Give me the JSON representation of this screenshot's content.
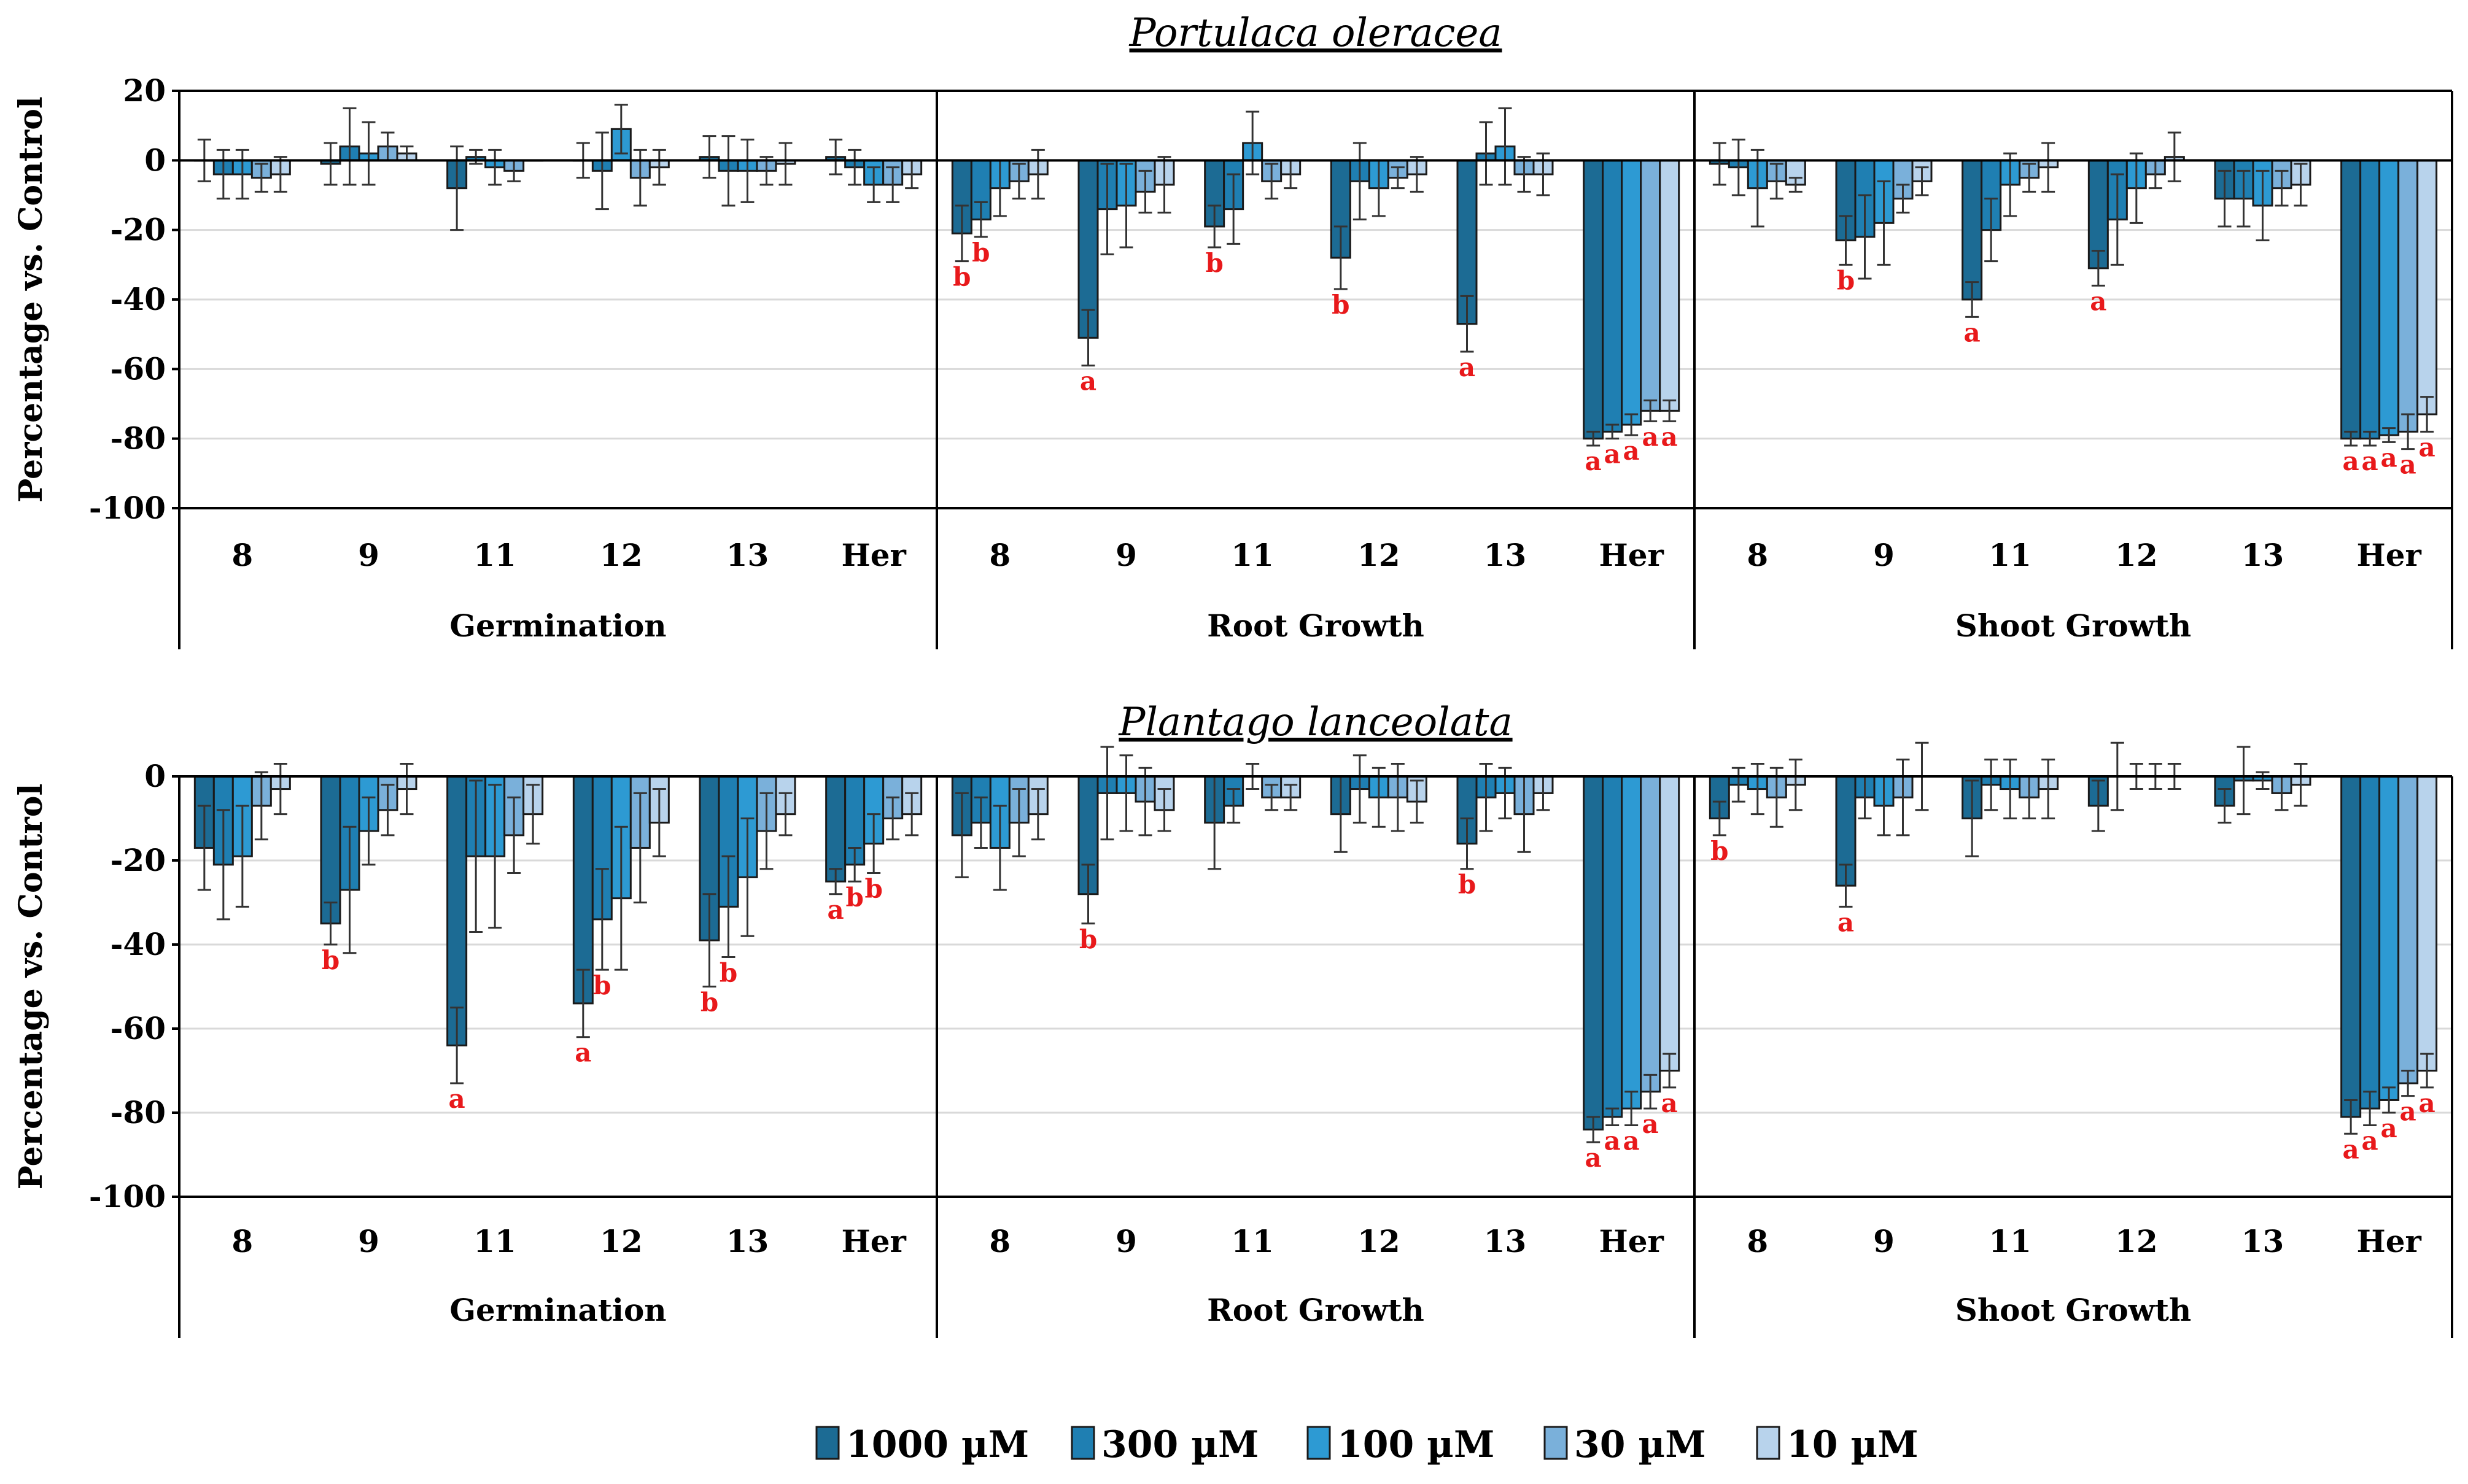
{
  "figure": {
    "legend_title": "",
    "concentrations": [
      "1000 µM",
      "300 µM",
      "100 µM",
      "30 µM",
      "10 µM"
    ]
  },
  "colors": {
    "series": [
      "#1c6b94",
      "#1f7fb2",
      "#2d9ad3",
      "#7ab0da",
      "#b8d3ec"
    ],
    "sig_letter": "#e8191b",
    "gridline": "#d9d9d9"
  },
  "chart_data": [
    {
      "type": "bar",
      "title": "Portulaca oleracea",
      "ylabel": "Percentage vs. Control",
      "ylim": [
        -100,
        20
      ],
      "yticks": [
        20,
        0,
        -20,
        -40,
        -60,
        -80,
        -100
      ],
      "categories": [
        "8",
        "9",
        "11",
        "12",
        "13",
        "Her"
      ],
      "groups": [
        "Germination",
        "Root Growth",
        "Shoot Growth"
      ],
      "series_names": [
        "1000 µM",
        "300 µM",
        "100 µM",
        "30 µM",
        "10 µM"
      ],
      "data": {
        "Germination": {
          "8": {
            "v": [
              0,
              -4,
              -4,
              -5,
              -4
            ],
            "e": [
              6,
              7,
              7,
              4,
              5
            ],
            "sig": [
              "",
              "",
              "",
              "",
              ""
            ]
          },
          "9": {
            "v": [
              -1,
              4,
              2,
              4,
              2
            ],
            "e": [
              6,
              11,
              9,
              4,
              2
            ],
            "sig": [
              "",
              "",
              "",
              "",
              ""
            ]
          },
          "11": {
            "v": [
              -8,
              1,
              -2,
              -3,
              0
            ],
            "e": [
              12,
              2,
              5,
              3,
              0
            ],
            "sig": [
              "",
              "",
              "",
              "",
              ""
            ]
          },
          "12": {
            "v": [
              0,
              -3,
              9,
              -5,
              -2
            ],
            "e": [
              5,
              11,
              7,
              8,
              5
            ],
            "sig": [
              "",
              "",
              "",
              "",
              ""
            ]
          },
          "13": {
            "v": [
              1,
              -3,
              -3,
              -3,
              -1
            ],
            "e": [
              6,
              10,
              9,
              4,
              6
            ],
            "sig": [
              "",
              "",
              "",
              "",
              ""
            ]
          },
          "Her": {
            "v": [
              1,
              -2,
              -7,
              -7,
              -4
            ],
            "e": [
              5,
              5,
              5,
              5,
              4
            ],
            "sig": [
              "",
              "",
              "",
              "",
              ""
            ]
          }
        },
        "Root Growth": {
          "8": {
            "v": [
              -21,
              -17,
              -8,
              -6,
              -4
            ],
            "e": [
              8,
              5,
              8,
              5,
              7
            ],
            "sig": [
              "b",
              "b",
              "",
              "",
              ""
            ]
          },
          "9": {
            "v": [
              -51,
              -14,
              -13,
              -9,
              -7
            ],
            "e": [
              8,
              13,
              12,
              6,
              8
            ],
            "sig": [
              "a",
              "",
              "",
              "",
              ""
            ]
          },
          "11": {
            "v": [
              -19,
              -14,
              5,
              -6,
              -4
            ],
            "e": [
              6,
              10,
              9,
              5,
              4
            ],
            "sig": [
              "b",
              "",
              "",
              "",
              ""
            ]
          },
          "12": {
            "v": [
              -28,
              -6,
              -8,
              -5,
              -4
            ],
            "e": [
              9,
              11,
              8,
              3,
              5
            ],
            "sig": [
              "b",
              "",
              "",
              "",
              ""
            ]
          },
          "13": {
            "v": [
              -47,
              2,
              4,
              -4,
              -4
            ],
            "e": [
              8,
              9,
              11,
              5,
              6
            ],
            "sig": [
              "a",
              "",
              "",
              "",
              ""
            ]
          },
          "Her": {
            "v": [
              -80,
              -78,
              -76,
              -72,
              -72
            ],
            "e": [
              2,
              2,
              3,
              3,
              3
            ],
            "sig": [
              "a",
              "a",
              "a",
              "a",
              "a"
            ]
          }
        },
        "Shoot Growth": {
          "8": {
            "v": [
              -1,
              -2,
              -8,
              -6,
              -7
            ],
            "e": [
              6,
              8,
              11,
              5,
              2
            ],
            "sig": [
              "",
              "",
              "",
              "",
              ""
            ]
          },
          "9": {
            "v": [
              -23,
              -22,
              -18,
              -11,
              -6
            ],
            "e": [
              7,
              12,
              12,
              4,
              4
            ],
            "sig": [
              "b",
              "",
              "",
              "",
              ""
            ]
          },
          "11": {
            "v": [
              -40,
              -20,
              -7,
              -5,
              -2
            ],
            "e": [
              5,
              9,
              9,
              4,
              7
            ],
            "sig": [
              "a",
              "",
              "",
              "",
              ""
            ]
          },
          "12": {
            "v": [
              -31,
              -17,
              -8,
              -4,
              1
            ],
            "e": [
              5,
              13,
              10,
              4,
              7
            ],
            "sig": [
              "a",
              "",
              "",
              "",
              ""
            ]
          },
          "13": {
            "v": [
              -11,
              -11,
              -13,
              -8,
              -7
            ],
            "e": [
              8,
              8,
              10,
              5,
              6
            ],
            "sig": [
              "",
              "",
              "",
              "",
              ""
            ]
          },
          "Her": {
            "v": [
              -80,
              -80,
              -79,
              -78,
              -73
            ],
            "e": [
              2,
              2,
              2,
              5,
              5
            ],
            "sig": [
              "a",
              "a",
              "a",
              "a",
              "a"
            ]
          }
        }
      }
    },
    {
      "type": "bar",
      "title": "Plantago lanceolata",
      "ylabel": "Percentage vs. Control",
      "ylim": [
        -100,
        0
      ],
      "yticks": [
        0,
        -20,
        -40,
        -60,
        -80,
        -100
      ],
      "categories": [
        "8",
        "9",
        "11",
        "12",
        "13",
        "Her"
      ],
      "groups": [
        "Germination",
        "Root Growth",
        "Shoot Growth"
      ],
      "series_names": [
        "1000 µM",
        "300 µM",
        "100 µM",
        "30 µM",
        "10 µM"
      ],
      "data": {
        "Germination": {
          "8": {
            "v": [
              -17,
              -21,
              -19,
              -7,
              -3
            ],
            "e": [
              10,
              13,
              12,
              8,
              6
            ],
            "sig": [
              "",
              "",
              "",
              "",
              ""
            ]
          },
          "9": {
            "v": [
              -35,
              -27,
              -13,
              -8,
              -3
            ],
            "e": [
              5,
              15,
              8,
              6,
              6
            ],
            "sig": [
              "b",
              "",
              "",
              "",
              ""
            ]
          },
          "11": {
            "v": [
              -64,
              -19,
              -19,
              -14,
              -9
            ],
            "e": [
              9,
              18,
              17,
              9,
              7
            ],
            "sig": [
              "a",
              "",
              "",
              "",
              ""
            ]
          },
          "12": {
            "v": [
              -54,
              -34,
              -29,
              -17,
              -11
            ],
            "e": [
              8,
              12,
              17,
              13,
              8
            ],
            "sig": [
              "a",
              "b",
              "",
              "",
              ""
            ]
          },
          "13": {
            "v": [
              -39,
              -31,
              -24,
              -13,
              -9
            ],
            "e": [
              11,
              12,
              14,
              9,
              5
            ],
            "sig": [
              "b",
              "b",
              "",
              "",
              ""
            ]
          },
          "Her": {
            "v": [
              -25,
              -21,
              -16,
              -10,
              -9
            ],
            "e": [
              3,
              4,
              7,
              5,
              5
            ],
            "sig": [
              "a",
              "b",
              "b",
              "",
              ""
            ]
          }
        },
        "Root Growth": {
          "8": {
            "v": [
              -14,
              -11,
              -17,
              -11,
              -9
            ],
            "e": [
              10,
              6,
              10,
              8,
              6
            ],
            "sig": [
              "",
              "",
              "",
              "",
              ""
            ]
          },
          "9": {
            "v": [
              -28,
              -4,
              -4,
              -6,
              -8
            ],
            "e": [
              7,
              11,
              9,
              8,
              5
            ],
            "sig": [
              "b",
              "",
              "",
              "",
              ""
            ]
          },
          "11": {
            "v": [
              -11,
              -7,
              0,
              -5,
              -5
            ],
            "e": [
              11,
              4,
              3,
              3,
              3
            ],
            "sig": [
              "",
              "",
              "",
              "",
              ""
            ]
          },
          "12": {
            "v": [
              -9,
              -3,
              -5,
              -5,
              -6
            ],
            "e": [
              9,
              8,
              7,
              8,
              5
            ],
            "sig": [
              "",
              "",
              "",
              "",
              ""
            ]
          },
          "13": {
            "v": [
              -16,
              -5,
              -4,
              -9,
              -4
            ],
            "e": [
              6,
              8,
              6,
              9,
              4
            ],
            "sig": [
              "b",
              "",
              "",
              "",
              ""
            ]
          },
          "Her": {
            "v": [
              -84,
              -81,
              -79,
              -75,
              -70
            ],
            "e": [
              3,
              2,
              4,
              4,
              4
            ],
            "sig": [
              "a",
              "a",
              "a",
              "a",
              "a"
            ]
          }
        },
        "Shoot Growth": {
          "8": {
            "v": [
              -10,
              -2,
              -3,
              -5,
              -2
            ],
            "e": [
              4,
              4,
              6,
              7,
              6
            ],
            "sig": [
              "b",
              "",
              "",
              "",
              ""
            ]
          },
          "9": {
            "v": [
              -26,
              -5,
              -7,
              -5,
              0
            ],
            "e": [
              5,
              5,
              7,
              9,
              8
            ],
            "sig": [
              "a",
              "",
              "",
              "",
              ""
            ]
          },
          "11": {
            "v": [
              -10,
              -2,
              -3,
              -5,
              -3
            ],
            "e": [
              9,
              6,
              7,
              5,
              7
            ],
            "sig": [
              "",
              "",
              "",
              "",
              ""
            ]
          },
          "12": {
            "v": [
              -7,
              0,
              0,
              0,
              0
            ],
            "e": [
              6,
              8,
              3,
              3,
              3
            ],
            "sig": [
              "",
              "",
              "",
              "",
              ""
            ]
          },
          "13": {
            "v": [
              -7,
              -1,
              -1,
              -4,
              -2
            ],
            "e": [
              4,
              8,
              2,
              4,
              5
            ],
            "sig": [
              "",
              "",
              "",
              "",
              ""
            ]
          },
          "Her": {
            "v": [
              -81,
              -79,
              -77,
              -73,
              -70
            ],
            "e": [
              4,
              4,
              3,
              3,
              4
            ],
            "sig": [
              "a",
              "a",
              "a",
              "a",
              "a"
            ]
          }
        }
      }
    }
  ]
}
